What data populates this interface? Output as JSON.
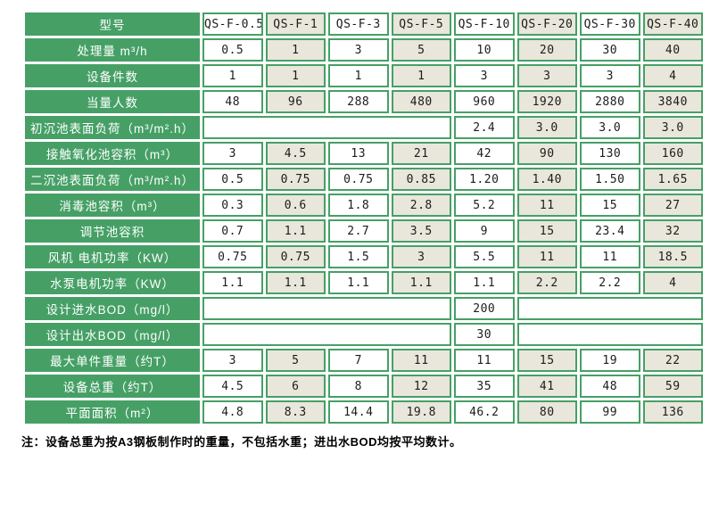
{
  "colors": {
    "table_green": "#46a066",
    "cell_beige": "#e9e6db",
    "cell_white": "#ffffff",
    "label_text": "#ffffff",
    "value_text": "#1c1c1c"
  },
  "table": {
    "header": {
      "label": "型号",
      "models": [
        "QS-F-0.5",
        "QS-F-1",
        "QS-F-3",
        "QS-F-5",
        "QS-F-10",
        "QS-F-20",
        "QS-F-30",
        "QS-F-40"
      ]
    },
    "rows": [
      {
        "label": "处理量 m³/h",
        "cells": [
          {
            "v": "0.5"
          },
          {
            "v": "1"
          },
          {
            "v": "3"
          },
          {
            "v": "5"
          },
          {
            "v": "10"
          },
          {
            "v": "20"
          },
          {
            "v": "30"
          },
          {
            "v": "40"
          }
        ]
      },
      {
        "label": "设备件数",
        "cells": [
          {
            "v": "1"
          },
          {
            "v": "1"
          },
          {
            "v": "1"
          },
          {
            "v": "1"
          },
          {
            "v": "3"
          },
          {
            "v": "3"
          },
          {
            "v": "3"
          },
          {
            "v": "4"
          }
        ]
      },
      {
        "label": "当量人数",
        "cells": [
          {
            "v": "48"
          },
          {
            "v": "96"
          },
          {
            "v": "288"
          },
          {
            "v": "480"
          },
          {
            "v": "960"
          },
          {
            "v": "1920"
          },
          {
            "v": "2880"
          },
          {
            "v": "3840"
          }
        ]
      },
      {
        "label": "初沉池表面负荷（m³/m².h）",
        "cells": [
          {
            "v": "",
            "span": 4
          },
          {
            "v": "2.4"
          },
          {
            "v": "3.0"
          },
          {
            "v": "3.0"
          },
          {
            "v": "3.0"
          }
        ]
      },
      {
        "label": "接触氧化池容积（m³）",
        "cells": [
          {
            "v": "3"
          },
          {
            "v": "4.5"
          },
          {
            "v": "13"
          },
          {
            "v": "21"
          },
          {
            "v": "42"
          },
          {
            "v": "90"
          },
          {
            "v": "130"
          },
          {
            "v": "160"
          }
        ]
      },
      {
        "label": "二沉池表面负荷（m³/m².h）",
        "cells": [
          {
            "v": "0.5"
          },
          {
            "v": "0.75"
          },
          {
            "v": "0.75"
          },
          {
            "v": "0.85"
          },
          {
            "v": "1.20"
          },
          {
            "v": "1.40"
          },
          {
            "v": "1.50"
          },
          {
            "v": "1.65"
          }
        ]
      },
      {
        "label": "消毒池容积（m³）",
        "cells": [
          {
            "v": "0.3"
          },
          {
            "v": "0.6"
          },
          {
            "v": "1.8"
          },
          {
            "v": "2.8"
          },
          {
            "v": "5.2"
          },
          {
            "v": "11"
          },
          {
            "v": "15"
          },
          {
            "v": "27"
          }
        ]
      },
      {
        "label": "调节池容积",
        "cells": [
          {
            "v": "0.7"
          },
          {
            "v": "1.1"
          },
          {
            "v": "2.7"
          },
          {
            "v": "3.5"
          },
          {
            "v": "9"
          },
          {
            "v": "15"
          },
          {
            "v": "23.4"
          },
          {
            "v": "32"
          }
        ]
      },
      {
        "label": "风机 电机功率（KW）",
        "cells": [
          {
            "v": "0.75"
          },
          {
            "v": "0.75"
          },
          {
            "v": "1.5"
          },
          {
            "v": "3"
          },
          {
            "v": "5.5"
          },
          {
            "v": "11"
          },
          {
            "v": "11"
          },
          {
            "v": "18.5"
          }
        ]
      },
      {
        "label": "水泵电机功率（KW）",
        "cells": [
          {
            "v": "1.1"
          },
          {
            "v": "1.1"
          },
          {
            "v": "1.1"
          },
          {
            "v": "1.1"
          },
          {
            "v": "1.1"
          },
          {
            "v": "2.2"
          },
          {
            "v": "2.2"
          },
          {
            "v": "4"
          }
        ]
      },
      {
        "label": "设计进水BOD（mg/l）",
        "cells": [
          {
            "v": "",
            "span": 4
          },
          {
            "v": "200"
          },
          {
            "v": "",
            "span": 3
          }
        ]
      },
      {
        "label": "设计出水BOD（mg/l）",
        "cells": [
          {
            "v": "",
            "span": 4
          },
          {
            "v": "30"
          },
          {
            "v": "",
            "span": 3
          }
        ]
      },
      {
        "label": "最大单件重量（约T）",
        "cells": [
          {
            "v": "3"
          },
          {
            "v": "5"
          },
          {
            "v": "7"
          },
          {
            "v": "11"
          },
          {
            "v": "11"
          },
          {
            "v": "15"
          },
          {
            "v": "19"
          },
          {
            "v": "22"
          }
        ]
      },
      {
        "label": "设备总重（约T）",
        "cells": [
          {
            "v": "4.5"
          },
          {
            "v": "6"
          },
          {
            "v": "8"
          },
          {
            "v": "12"
          },
          {
            "v": "35"
          },
          {
            "v": "41"
          },
          {
            "v": "48"
          },
          {
            "v": "59"
          }
        ]
      },
      {
        "label": "平面面积（m²）",
        "cells": [
          {
            "v": "4.8"
          },
          {
            "v": "8.3"
          },
          {
            "v": "14.4"
          },
          {
            "v": "19.8"
          },
          {
            "v": "46.2"
          },
          {
            "v": "80"
          },
          {
            "v": "99"
          },
          {
            "v": "136"
          }
        ]
      }
    ]
  },
  "note": "注：设备总重为按A3钢板制作时的重量，不包括水重；进出水BOD均按平均数计。"
}
